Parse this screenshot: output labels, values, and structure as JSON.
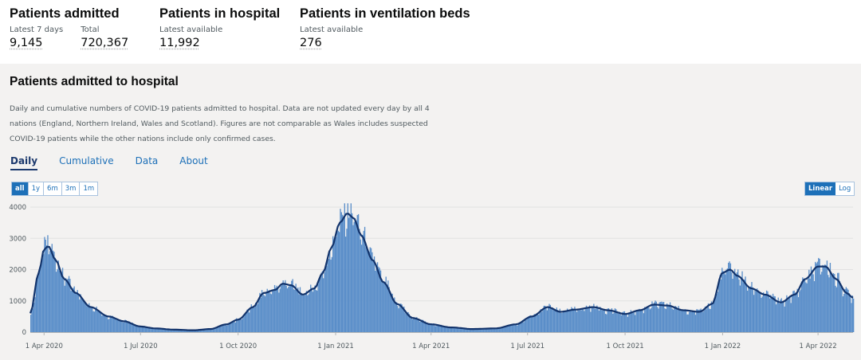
{
  "headline": {
    "admitted": {
      "title": "Patients admitted",
      "m1_label": "Latest 7 days",
      "m1_value": "9,145",
      "m2_label": "Total",
      "m2_value": "720,367"
    },
    "hospital": {
      "title": "Patients in hospital",
      "m1_label": "Latest available",
      "m1_value": "11,992"
    },
    "ventilation": {
      "title": "Patients in ventilation beds",
      "m1_label": "Latest available",
      "m1_value": "276"
    }
  },
  "card": {
    "title": "Patients admitted to hospital",
    "description": "Daily and cumulative numbers of COVID-19 patients admitted to hospital. Data are not updated every day by all 4 nations (England, Northern Ireland, Wales and Scotland). Figures are not comparable as Wales includes suspected COVID-19 patients while the other nations include only confirmed cases.",
    "tabs": [
      "Daily",
      "Cumulative",
      "Data",
      "About"
    ],
    "ranges": [
      "all",
      "1y",
      "6m",
      "3m",
      "1m"
    ],
    "scales": [
      "Linear",
      "Log"
    ]
  },
  "colors": {
    "bar": "#5a8ec9",
    "line": "#12336b",
    "grid": "#e1e1e1",
    "accent": "#1d70b8"
  },
  "chart_data": {
    "type": "bar",
    "x_start": "2020-03-19",
    "x_end": "2022-05-04",
    "ylim": [
      0,
      4000
    ],
    "yticks": [
      0,
      1000,
      2000,
      3000,
      4000
    ],
    "xticks": [
      {
        "date": "2020-04-01",
        "label": "1 Apr 2020"
      },
      {
        "date": "2020-07-01",
        "label": "1 Jul 2020"
      },
      {
        "date": "2020-10-01",
        "label": "1 Oct 2020"
      },
      {
        "date": "2021-01-01",
        "label": "1 Jan 2021"
      },
      {
        "date": "2021-04-01",
        "label": "1 Apr 2021"
      },
      {
        "date": "2021-07-01",
        "label": "1 Jul 2021"
      },
      {
        "date": "2021-10-01",
        "label": "1 Oct 2021"
      },
      {
        "date": "2022-01-01",
        "label": "1 Jan 2022"
      },
      {
        "date": "2022-04-01",
        "label": "1 Apr 2022"
      }
    ],
    "series": [
      {
        "style": "bar",
        "description": "daily admissions"
      },
      {
        "style": "line",
        "description": "7-day average"
      }
    ],
    "points": [
      [
        "2020-03-19",
        600
      ],
      [
        "2020-03-27",
        1900
      ],
      [
        "2020-04-01",
        2650
      ],
      [
        "2020-04-05",
        2750
      ],
      [
        "2020-04-12",
        2300
      ],
      [
        "2020-04-20",
        1700
      ],
      [
        "2020-05-01",
        1250
      ],
      [
        "2020-05-15",
        800
      ],
      [
        "2020-06-01",
        500
      ],
      [
        "2020-06-15",
        350
      ],
      [
        "2020-07-01",
        180
      ],
      [
        "2020-07-15",
        120
      ],
      [
        "2020-08-01",
        80
      ],
      [
        "2020-08-20",
        60
      ],
      [
        "2020-09-05",
        100
      ],
      [
        "2020-09-20",
        250
      ],
      [
        "2020-10-01",
        400
      ],
      [
        "2020-10-15",
        800
      ],
      [
        "2020-10-25",
        1250
      ],
      [
        "2020-11-05",
        1350
      ],
      [
        "2020-11-12",
        1550
      ],
      [
        "2020-11-20",
        1500
      ],
      [
        "2020-12-01",
        1200
      ],
      [
        "2020-12-12",
        1400
      ],
      [
        "2020-12-20",
        1900
      ],
      [
        "2020-12-28",
        2700
      ],
      [
        "2021-01-05",
        3500
      ],
      [
        "2021-01-12",
        3800
      ],
      [
        "2021-01-18",
        3650
      ],
      [
        "2021-01-25",
        3100
      ],
      [
        "2021-02-05",
        2300
      ],
      [
        "2021-02-15",
        1600
      ],
      [
        "2021-02-28",
        900
      ],
      [
        "2021-03-15",
        450
      ],
      [
        "2021-04-01",
        250
      ],
      [
        "2021-04-20",
        150
      ],
      [
        "2021-05-10",
        100
      ],
      [
        "2021-06-01",
        120
      ],
      [
        "2021-06-20",
        250
      ],
      [
        "2021-07-05",
        500
      ],
      [
        "2021-07-20",
        800
      ],
      [
        "2021-08-01",
        650
      ],
      [
        "2021-08-15",
        720
      ],
      [
        "2021-09-01",
        800
      ],
      [
        "2021-09-15",
        700
      ],
      [
        "2021-10-01",
        580
      ],
      [
        "2021-10-15",
        700
      ],
      [
        "2021-10-28",
        880
      ],
      [
        "2021-11-10",
        850
      ],
      [
        "2021-11-25",
        700
      ],
      [
        "2021-12-10",
        650
      ],
      [
        "2021-12-22",
        900
      ],
      [
        "2022-01-01",
        1900
      ],
      [
        "2022-01-08",
        2000
      ],
      [
        "2022-01-15",
        1800
      ],
      [
        "2022-01-28",
        1400
      ],
      [
        "2022-02-10",
        1200
      ],
      [
        "2022-02-25",
        950
      ],
      [
        "2022-03-10",
        1200
      ],
      [
        "2022-03-20",
        1700
      ],
      [
        "2022-04-01",
        2100
      ],
      [
        "2022-04-08",
        2100
      ],
      [
        "2022-04-18",
        1700
      ],
      [
        "2022-04-28",
        1250
      ],
      [
        "2022-05-04",
        1100
      ]
    ]
  }
}
